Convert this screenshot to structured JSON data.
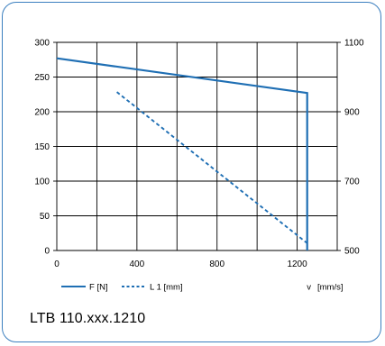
{
  "chart_data": {
    "type": "line",
    "x": {
      "label": "v",
      "unit": "[mm/s]",
      "range": [
        0,
        1400
      ],
      "ticks": [
        0,
        400,
        800,
        1200
      ]
    },
    "y_left": {
      "range": [
        0,
        300
      ],
      "ticks": [
        0,
        50,
        100,
        150,
        200,
        250,
        300
      ]
    },
    "y_right": {
      "range": [
        500,
        1100
      ],
      "ticks": [
        500,
        700,
        900,
        1100
      ]
    },
    "grid": true,
    "legend_position": "bottom",
    "series": [
      {
        "name": "F [N]",
        "axis": "left",
        "style": "solid",
        "color": "#1f6fb4",
        "points": [
          [
            0,
            277
          ],
          [
            1250,
            227
          ],
          [
            1250,
            0
          ]
        ]
      },
      {
        "name": "L 1 [mm]",
        "axis": "right",
        "style": "dashed",
        "color": "#1f6fb4",
        "points": [
          [
            300,
            957
          ],
          [
            1250,
            521
          ]
        ]
      }
    ]
  },
  "caption": "LTB 110.xxx.1210"
}
